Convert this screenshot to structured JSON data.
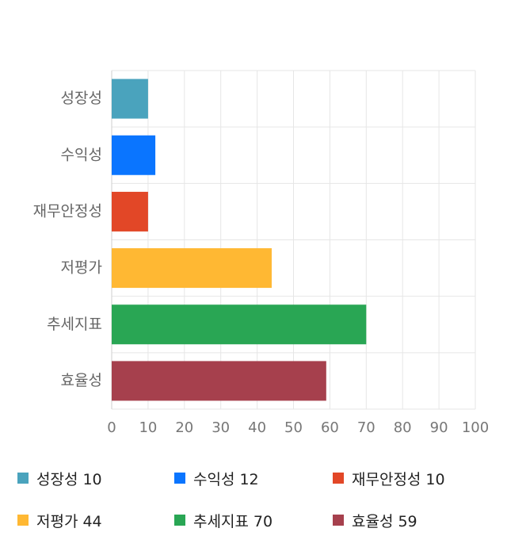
{
  "chart_data": {
    "type": "bar",
    "orientation": "horizontal",
    "categories": [
      "성장성",
      "수익성",
      "재무안정성",
      "저평가",
      "추세지표",
      "효율성"
    ],
    "values": [
      10,
      12,
      10,
      44,
      70,
      59
    ],
    "colors": [
      "#4aa3bd",
      "#0a75ff",
      "#e24727",
      "#ffb833",
      "#29a654",
      "#a6404d"
    ],
    "xlim": [
      0,
      100
    ],
    "xticks": [
      0,
      10,
      20,
      30,
      40,
      50,
      60,
      70,
      80,
      90,
      100
    ],
    "grid": true,
    "legend_position": "bottom",
    "title": "",
    "xlabel": "",
    "ylabel": ""
  },
  "legend": [
    {
      "name": "성장성",
      "value": "10"
    },
    {
      "name": "수익성",
      "value": "12"
    },
    {
      "name": "재무안정성",
      "value": "10"
    },
    {
      "name": "저평가",
      "value": "44"
    },
    {
      "name": "추세지표",
      "value": "70"
    },
    {
      "name": "효율성",
      "value": "59"
    }
  ]
}
